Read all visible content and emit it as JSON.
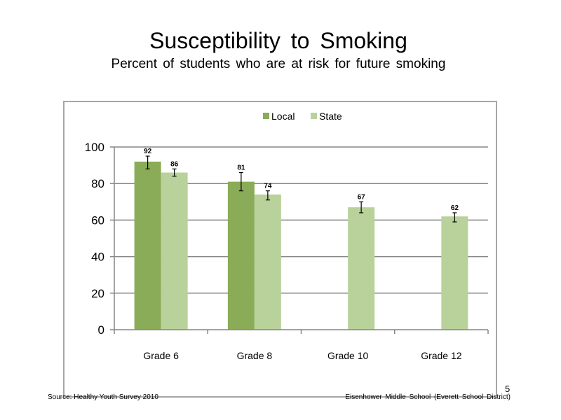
{
  "slide": {
    "title": "Susceptibility  to Smoking",
    "subtitle": "Percent of students  who are at risk for future smoking",
    "source": "Source: Healthy Youth Survey 2010",
    "school": "Eisenhower Middle  School (Everett School District)",
    "page_number": "5"
  },
  "chart_data": {
    "type": "bar",
    "categories": [
      "Grade 6",
      "Grade 8",
      "Grade 10",
      "Grade 12"
    ],
    "series": [
      {
        "name": "Local",
        "color": "#8aab57",
        "values": [
          92,
          81,
          null,
          null
        ],
        "error": [
          [
            88,
            95
          ],
          [
            76,
            86
          ],
          null,
          null
        ]
      },
      {
        "name": "State",
        "color": "#b9d19a",
        "values": [
          86,
          74,
          67,
          62
        ],
        "error": [
          [
            84,
            88
          ],
          [
            71,
            76
          ],
          [
            64,
            70
          ],
          [
            59,
            64
          ]
        ]
      }
    ],
    "data_labels": [
      [
        "92",
        "81",
        "",
        ""
      ],
      [
        "86",
        "74",
        "67",
        "62"
      ]
    ],
    "ylim": [
      0,
      100
    ],
    "yticks": [
      0,
      20,
      40,
      60,
      80,
      100
    ],
    "grid": true,
    "legend_position": "top"
  }
}
